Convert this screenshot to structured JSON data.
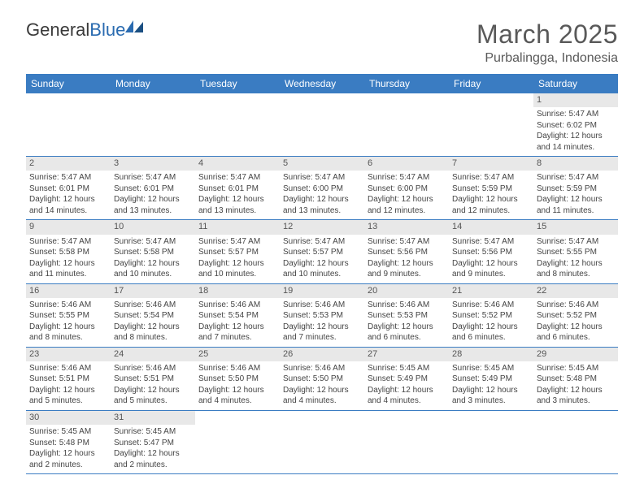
{
  "logo": {
    "text1": "General",
    "text2": "Blue"
  },
  "title": "March 2025",
  "subtitle": "Purbalingga, Indonesia",
  "columns": [
    "Sunday",
    "Monday",
    "Tuesday",
    "Wednesday",
    "Thursday",
    "Friday",
    "Saturday"
  ],
  "header_bg": "#3a7cc2",
  "day_bg": "#e8e8e8",
  "first_weekday": 6,
  "days": [
    {
      "n": 1,
      "sunrise": "5:47 AM",
      "sunset": "6:02 PM",
      "daylight": "12 hours and 14 minutes."
    },
    {
      "n": 2,
      "sunrise": "5:47 AM",
      "sunset": "6:01 PM",
      "daylight": "12 hours and 14 minutes."
    },
    {
      "n": 3,
      "sunrise": "5:47 AM",
      "sunset": "6:01 PM",
      "daylight": "12 hours and 13 minutes."
    },
    {
      "n": 4,
      "sunrise": "5:47 AM",
      "sunset": "6:01 PM",
      "daylight": "12 hours and 13 minutes."
    },
    {
      "n": 5,
      "sunrise": "5:47 AM",
      "sunset": "6:00 PM",
      "daylight": "12 hours and 13 minutes."
    },
    {
      "n": 6,
      "sunrise": "5:47 AM",
      "sunset": "6:00 PM",
      "daylight": "12 hours and 12 minutes."
    },
    {
      "n": 7,
      "sunrise": "5:47 AM",
      "sunset": "5:59 PM",
      "daylight": "12 hours and 12 minutes."
    },
    {
      "n": 8,
      "sunrise": "5:47 AM",
      "sunset": "5:59 PM",
      "daylight": "12 hours and 11 minutes."
    },
    {
      "n": 9,
      "sunrise": "5:47 AM",
      "sunset": "5:58 PM",
      "daylight": "12 hours and 11 minutes."
    },
    {
      "n": 10,
      "sunrise": "5:47 AM",
      "sunset": "5:58 PM",
      "daylight": "12 hours and 10 minutes."
    },
    {
      "n": 11,
      "sunrise": "5:47 AM",
      "sunset": "5:57 PM",
      "daylight": "12 hours and 10 minutes."
    },
    {
      "n": 12,
      "sunrise": "5:47 AM",
      "sunset": "5:57 PM",
      "daylight": "12 hours and 10 minutes."
    },
    {
      "n": 13,
      "sunrise": "5:47 AM",
      "sunset": "5:56 PM",
      "daylight": "12 hours and 9 minutes."
    },
    {
      "n": 14,
      "sunrise": "5:47 AM",
      "sunset": "5:56 PM",
      "daylight": "12 hours and 9 minutes."
    },
    {
      "n": 15,
      "sunrise": "5:47 AM",
      "sunset": "5:55 PM",
      "daylight": "12 hours and 8 minutes."
    },
    {
      "n": 16,
      "sunrise": "5:46 AM",
      "sunset": "5:55 PM",
      "daylight": "12 hours and 8 minutes."
    },
    {
      "n": 17,
      "sunrise": "5:46 AM",
      "sunset": "5:54 PM",
      "daylight": "12 hours and 8 minutes."
    },
    {
      "n": 18,
      "sunrise": "5:46 AM",
      "sunset": "5:54 PM",
      "daylight": "12 hours and 7 minutes."
    },
    {
      "n": 19,
      "sunrise": "5:46 AM",
      "sunset": "5:53 PM",
      "daylight": "12 hours and 7 minutes."
    },
    {
      "n": 20,
      "sunrise": "5:46 AM",
      "sunset": "5:53 PM",
      "daylight": "12 hours and 6 minutes."
    },
    {
      "n": 21,
      "sunrise": "5:46 AM",
      "sunset": "5:52 PM",
      "daylight": "12 hours and 6 minutes."
    },
    {
      "n": 22,
      "sunrise": "5:46 AM",
      "sunset": "5:52 PM",
      "daylight": "12 hours and 6 minutes."
    },
    {
      "n": 23,
      "sunrise": "5:46 AM",
      "sunset": "5:51 PM",
      "daylight": "12 hours and 5 minutes."
    },
    {
      "n": 24,
      "sunrise": "5:46 AM",
      "sunset": "5:51 PM",
      "daylight": "12 hours and 5 minutes."
    },
    {
      "n": 25,
      "sunrise": "5:46 AM",
      "sunset": "5:50 PM",
      "daylight": "12 hours and 4 minutes."
    },
    {
      "n": 26,
      "sunrise": "5:46 AM",
      "sunset": "5:50 PM",
      "daylight": "12 hours and 4 minutes."
    },
    {
      "n": 27,
      "sunrise": "5:45 AM",
      "sunset": "5:49 PM",
      "daylight": "12 hours and 4 minutes."
    },
    {
      "n": 28,
      "sunrise": "5:45 AM",
      "sunset": "5:49 PM",
      "daylight": "12 hours and 3 minutes."
    },
    {
      "n": 29,
      "sunrise": "5:45 AM",
      "sunset": "5:48 PM",
      "daylight": "12 hours and 3 minutes."
    },
    {
      "n": 30,
      "sunrise": "5:45 AM",
      "sunset": "5:48 PM",
      "daylight": "12 hours and 2 minutes."
    },
    {
      "n": 31,
      "sunrise": "5:45 AM",
      "sunset": "5:47 PM",
      "daylight": "12 hours and 2 minutes."
    }
  ]
}
